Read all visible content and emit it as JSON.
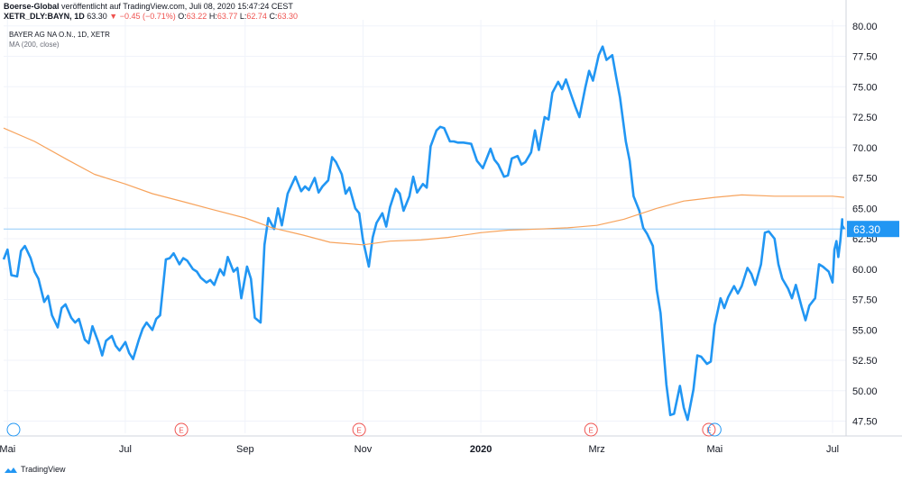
{
  "header": {
    "publisher": "Boerse-Global",
    "published_text": " veröffentlicht auf TradingView.com, Juli 08, 2020 15:47:24 CEST",
    "symbol": "XETR_DLY:BAYN, 1D",
    "last": "63.30",
    "change_arrow": "▼",
    "change": "−0.45 (−0.71%)",
    "o_label": "O:",
    "o_value": "63.22",
    "h_label": "H:",
    "h_value": "63.77",
    "l_label": "L:",
    "l_value": "62.74",
    "c_label": "C:",
    "c_value": "63.30"
  },
  "legend": {
    "series": "BAYER AG NA O.N., 1D, XETR",
    "indicator": "MA (200, close)"
  },
  "last_price_label": "63.30",
  "footer": {
    "brand": "TradingView"
  },
  "colors": {
    "price_line": "#2196f3",
    "ma_line": "#f7a35c",
    "last_price_tag": "#2196f3",
    "grid": "#f0f3fa",
    "earnings_marker": "#ef5350"
  },
  "chart_data": {
    "type": "line",
    "ylim": [
      46.5,
      80.5
    ],
    "y_ticks": [
      "80.00",
      "77.50",
      "75.00",
      "72.50",
      "70.00",
      "67.50",
      "65.00",
      "62.50",
      "60.00",
      "57.50",
      "55.00",
      "52.50",
      "50.00",
      "47.50"
    ],
    "y_tick_values": [
      80,
      77.5,
      75,
      72.5,
      70,
      67.5,
      65,
      62.5,
      60,
      57.5,
      55,
      52.5,
      50,
      47.5
    ],
    "x_ticks": [
      "Mai",
      "Jul",
      "Sep",
      "Nov",
      "2020",
      "Mrz",
      "Mai",
      "Jul"
    ],
    "x_tick_dates": [
      "2019-05-01",
      "2019-07-01",
      "2019-09-01",
      "2019-11-01",
      "2020-01-01",
      "2020-03-01",
      "2020-05-01",
      "2020-07-01"
    ],
    "x_range": [
      "2019-04-29",
      "2020-07-08"
    ],
    "earnings_markers": [
      {
        "label": "E",
        "date": "2019-07-30"
      },
      {
        "label": "E",
        "date": "2019-10-30"
      },
      {
        "label": "E",
        "date": "2020-02-27"
      },
      {
        "label": "E",
        "date": "2020-04-28"
      }
    ],
    "series": [
      {
        "name": "BAYER AG NA O.N., 1D, XETR",
        "color": "#2196f3",
        "points": [
          [
            "2019-04-29",
            60.8
          ],
          [
            "2019-05-01",
            61.6
          ],
          [
            "2019-05-03",
            59.5
          ],
          [
            "2019-05-06",
            59.4
          ],
          [
            "2019-05-08",
            61.5
          ],
          [
            "2019-05-10",
            61.9
          ],
          [
            "2019-05-13",
            60.9
          ],
          [
            "2019-05-15",
            59.8
          ],
          [
            "2019-05-17",
            59.2
          ],
          [
            "2019-05-20",
            57.3
          ],
          [
            "2019-05-22",
            57.8
          ],
          [
            "2019-05-24",
            56.2
          ],
          [
            "2019-05-27",
            55.2
          ],
          [
            "2019-05-29",
            56.8
          ],
          [
            "2019-05-31",
            57.1
          ],
          [
            "2019-06-03",
            56.0
          ],
          [
            "2019-06-05",
            55.6
          ],
          [
            "2019-06-07",
            55.9
          ],
          [
            "2019-06-10",
            54.2
          ],
          [
            "2019-06-12",
            53.9
          ],
          [
            "2019-06-14",
            55.3
          ],
          [
            "2019-06-17",
            54.0
          ],
          [
            "2019-06-19",
            52.9
          ],
          [
            "2019-06-21",
            54.1
          ],
          [
            "2019-06-24",
            54.5
          ],
          [
            "2019-06-26",
            53.7
          ],
          [
            "2019-06-28",
            53.3
          ],
          [
            "2019-07-01",
            54.0
          ],
          [
            "2019-07-03",
            53.1
          ],
          [
            "2019-07-05",
            52.6
          ],
          [
            "2019-07-08",
            54.2
          ],
          [
            "2019-07-10",
            55.1
          ],
          [
            "2019-07-12",
            55.6
          ],
          [
            "2019-07-15",
            55.0
          ],
          [
            "2019-07-17",
            55.9
          ],
          [
            "2019-07-19",
            56.2
          ],
          [
            "2019-07-22",
            60.8
          ],
          [
            "2019-07-24",
            60.9
          ],
          [
            "2019-07-26",
            61.3
          ],
          [
            "2019-07-29",
            60.4
          ],
          [
            "2019-07-31",
            60.9
          ],
          [
            "2019-08-02",
            60.7
          ],
          [
            "2019-08-05",
            60.0
          ],
          [
            "2019-08-07",
            59.8
          ],
          [
            "2019-08-09",
            59.3
          ],
          [
            "2019-08-12",
            58.9
          ],
          [
            "2019-08-14",
            59.1
          ],
          [
            "2019-08-16",
            58.7
          ],
          [
            "2019-08-19",
            60.0
          ],
          [
            "2019-08-21",
            59.5
          ],
          [
            "2019-08-23",
            61.0
          ],
          [
            "2019-08-26",
            59.8
          ],
          [
            "2019-08-28",
            60.1
          ],
          [
            "2019-08-30",
            57.6
          ],
          [
            "2019-09-02",
            60.2
          ],
          [
            "2019-09-04",
            59.2
          ],
          [
            "2019-09-06",
            56.0
          ],
          [
            "2019-09-09",
            55.6
          ],
          [
            "2019-09-11",
            62.0
          ],
          [
            "2019-09-13",
            64.2
          ],
          [
            "2019-09-16",
            63.3
          ],
          [
            "2019-09-18",
            65.0
          ],
          [
            "2019-09-20",
            63.6
          ],
          [
            "2019-09-23",
            66.2
          ],
          [
            "2019-09-25",
            66.9
          ],
          [
            "2019-09-27",
            67.6
          ],
          [
            "2019-09-30",
            66.4
          ],
          [
            "2019-10-02",
            66.8
          ],
          [
            "2019-10-04",
            66.5
          ],
          [
            "2019-10-07",
            67.5
          ],
          [
            "2019-10-09",
            66.3
          ],
          [
            "2019-10-11",
            66.8
          ],
          [
            "2019-10-14",
            67.3
          ],
          [
            "2019-10-16",
            69.2
          ],
          [
            "2019-10-18",
            68.8
          ],
          [
            "2019-10-21",
            67.8
          ],
          [
            "2019-10-23",
            66.2
          ],
          [
            "2019-10-25",
            66.7
          ],
          [
            "2019-10-28",
            65.0
          ],
          [
            "2019-10-30",
            64.6
          ],
          [
            "2019-11-01",
            62.4
          ],
          [
            "2019-11-04",
            60.2
          ],
          [
            "2019-11-06",
            62.6
          ],
          [
            "2019-11-08",
            63.8
          ],
          [
            "2019-11-11",
            64.6
          ],
          [
            "2019-11-13",
            63.5
          ],
          [
            "2019-11-15",
            65.1
          ],
          [
            "2019-11-18",
            66.6
          ],
          [
            "2019-11-20",
            66.2
          ],
          [
            "2019-11-22",
            64.8
          ],
          [
            "2019-11-25",
            66.0
          ],
          [
            "2019-11-27",
            67.6
          ],
          [
            "2019-11-29",
            66.3
          ],
          [
            "2019-12-02",
            67.0
          ],
          [
            "2019-12-04",
            66.7
          ],
          [
            "2019-12-06",
            70.1
          ],
          [
            "2019-12-09",
            71.4
          ],
          [
            "2019-12-11",
            71.7
          ],
          [
            "2019-12-13",
            71.6
          ],
          [
            "2019-12-16",
            70.5
          ],
          [
            "2019-12-18",
            70.5
          ],
          [
            "2019-12-20",
            70.4
          ],
          [
            "2019-12-23",
            70.4
          ],
          [
            "2019-12-27",
            70.3
          ],
          [
            "2019-12-30",
            68.9
          ],
          [
            "2020-01-02",
            68.3
          ],
          [
            "2020-01-06",
            69.9
          ],
          [
            "2020-01-08",
            69.0
          ],
          [
            "2020-01-10",
            68.6
          ],
          [
            "2020-01-13",
            67.6
          ],
          [
            "2020-01-15",
            67.7
          ],
          [
            "2020-01-17",
            69.1
          ],
          [
            "2020-01-20",
            69.3
          ],
          [
            "2020-01-22",
            68.6
          ],
          [
            "2020-01-24",
            68.8
          ],
          [
            "2020-01-27",
            69.6
          ],
          [
            "2020-01-29",
            71.4
          ],
          [
            "2020-01-31",
            69.8
          ],
          [
            "2020-02-03",
            72.5
          ],
          [
            "2020-02-05",
            72.3
          ],
          [
            "2020-02-07",
            74.5
          ],
          [
            "2020-02-10",
            75.4
          ],
          [
            "2020-02-12",
            74.8
          ],
          [
            "2020-02-14",
            75.6
          ],
          [
            "2020-02-17",
            74.2
          ],
          [
            "2020-02-19",
            73.3
          ],
          [
            "2020-02-21",
            72.5
          ],
          [
            "2020-02-24",
            74.9
          ],
          [
            "2020-02-26",
            76.3
          ],
          [
            "2020-02-28",
            75.5
          ],
          [
            "2020-03-02",
            77.6
          ],
          [
            "2020-03-04",
            78.3
          ],
          [
            "2020-03-06",
            77.2
          ],
          [
            "2020-03-09",
            77.6
          ],
          [
            "2020-03-11",
            75.8
          ],
          [
            "2020-03-13",
            74.1
          ],
          [
            "2020-03-16",
            70.5
          ],
          [
            "2020-03-18",
            68.9
          ],
          [
            "2020-03-20",
            66.0
          ],
          [
            "2020-03-23",
            64.8
          ],
          [
            "2020-03-25",
            63.4
          ],
          [
            "2020-03-27",
            62.9
          ],
          [
            "2020-03-30",
            61.9
          ],
          [
            "2020-04-01",
            58.3
          ],
          [
            "2020-04-03",
            56.4
          ],
          [
            "2020-04-06",
            50.5
          ],
          [
            "2020-04-08",
            48.0
          ],
          [
            "2020-04-10",
            48.1
          ],
          [
            "2020-04-13",
            50.4
          ],
          [
            "2020-04-15",
            48.6
          ],
          [
            "2020-04-17",
            47.6
          ],
          [
            "2020-04-20",
            50.1
          ],
          [
            "2020-04-22",
            52.9
          ],
          [
            "2020-04-24",
            52.8
          ],
          [
            "2020-04-27",
            52.2
          ],
          [
            "2020-04-29",
            52.4
          ],
          [
            "2020-05-01",
            55.4
          ],
          [
            "2020-05-04",
            57.6
          ],
          [
            "2020-05-06",
            56.8
          ],
          [
            "2020-05-08",
            57.7
          ],
          [
            "2020-05-11",
            58.6
          ],
          [
            "2020-05-13",
            58.0
          ],
          [
            "2020-05-15",
            58.6
          ],
          [
            "2020-05-18",
            60.1
          ],
          [
            "2020-05-20",
            59.6
          ],
          [
            "2020-05-22",
            58.7
          ],
          [
            "2020-05-25",
            60.4
          ],
          [
            "2020-05-27",
            63.0
          ],
          [
            "2020-05-29",
            63.1
          ],
          [
            "2020-06-01",
            62.5
          ],
          [
            "2020-06-03",
            60.4
          ],
          [
            "2020-06-05",
            59.2
          ],
          [
            "2020-06-08",
            58.4
          ],
          [
            "2020-06-10",
            57.6
          ],
          [
            "2020-06-12",
            58.7
          ],
          [
            "2020-06-15",
            56.9
          ],
          [
            "2020-06-17",
            55.8
          ],
          [
            "2020-06-19",
            57.0
          ],
          [
            "2020-06-22",
            57.6
          ],
          [
            "2020-06-24",
            60.4
          ],
          [
            "2020-06-26",
            60.2
          ],
          [
            "2020-06-29",
            59.8
          ],
          [
            "2020-07-01",
            58.9
          ],
          [
            "2020-07-02",
            61.6
          ],
          [
            "2020-07-03",
            62.3
          ],
          [
            "2020-07-04",
            61.0
          ],
          [
            "2020-07-05",
            62.3
          ],
          [
            "2020-07-06",
            64.1
          ],
          [
            "2020-07-06",
            63.6
          ],
          [
            "2020-07-07",
            63.3
          ]
        ]
      },
      {
        "name": "MA (200, close)",
        "color": "#f7a35c",
        "points": [
          [
            "2019-04-29",
            71.6
          ],
          [
            "2019-05-15",
            70.5
          ],
          [
            "2019-06-01",
            69.0
          ],
          [
            "2019-06-15",
            67.8
          ],
          [
            "2019-07-01",
            67.0
          ],
          [
            "2019-07-15",
            66.2
          ],
          [
            "2019-08-01",
            65.5
          ],
          [
            "2019-08-15",
            64.9
          ],
          [
            "2019-09-01",
            64.2
          ],
          [
            "2019-09-15",
            63.4
          ],
          [
            "2019-10-01",
            62.8
          ],
          [
            "2019-10-15",
            62.2
          ],
          [
            "2019-11-01",
            62.0
          ],
          [
            "2019-11-15",
            62.3
          ],
          [
            "2019-12-01",
            62.4
          ],
          [
            "2019-12-15",
            62.6
          ],
          [
            "2020-01-01",
            63.0
          ],
          [
            "2020-01-15",
            63.2
          ],
          [
            "2020-02-01",
            63.3
          ],
          [
            "2020-02-15",
            63.4
          ],
          [
            "2020-03-01",
            63.6
          ],
          [
            "2020-03-15",
            64.1
          ],
          [
            "2020-04-01",
            65.0
          ],
          [
            "2020-04-15",
            65.6
          ],
          [
            "2020-05-01",
            65.9
          ],
          [
            "2020-05-15",
            66.1
          ],
          [
            "2020-06-01",
            66.0
          ],
          [
            "2020-06-15",
            66.0
          ],
          [
            "2020-07-01",
            66.0
          ],
          [
            "2020-07-07",
            65.9
          ]
        ]
      }
    ],
    "last_price": 63.3
  }
}
